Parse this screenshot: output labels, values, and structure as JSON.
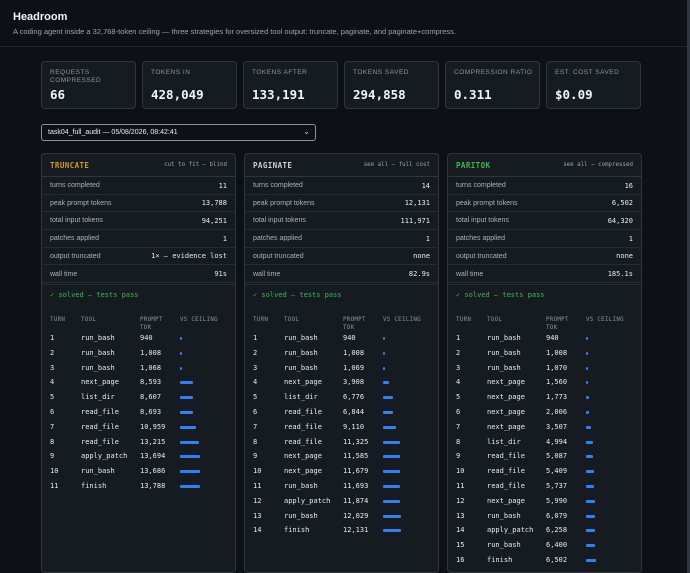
{
  "app": {
    "title": "Headroom",
    "subtitle": "A coding agent inside a 32,768-token ceiling — three strategies for oversized tool output: truncate, paginate, and paginate+compress."
  },
  "stats": [
    {
      "label": "REQUESTS COMPRESSED",
      "value": "66"
    },
    {
      "label": "TOKENS IN",
      "value": "428,049"
    },
    {
      "label": "TOKENS AFTER",
      "value": "133,191"
    },
    {
      "label": "TOKENS SAVED",
      "value": "294,858"
    },
    {
      "label": "COMPRESSION RATIO",
      "value": "0.311"
    },
    {
      "label": "EST. COST SAVED",
      "value": "$0.09"
    }
  ],
  "run_select": {
    "value": "task04_full_audit — 05/08/2026, 08:42:41"
  },
  "ceiling_tokens": 32768,
  "table_headers": {
    "turn": "TURN",
    "tool": "TOOL",
    "prompt_tok": "PROMPT TOK",
    "vs_ceiling": "VS CEILING"
  },
  "panels": [
    {
      "name": "TRUNCATE",
      "tag": "cut to fit — blind",
      "color": "#d29922",
      "metrics": [
        {
          "label": "turns completed",
          "value": "11"
        },
        {
          "label": "peak prompt tokens",
          "value": "13,788"
        },
        {
          "label": "total input tokens",
          "value": "94,251"
        },
        {
          "label": "patches applied",
          "value": "1"
        },
        {
          "label": "output truncated",
          "value": "1× — evidence lost"
        },
        {
          "label": "wall time",
          "value": "91s"
        }
      ],
      "status": "✓ solved — tests pass",
      "rows": [
        {
          "turn": "1",
          "tool": "run_bash",
          "tok": "940",
          "n": 940
        },
        {
          "turn": "2",
          "tool": "run_bash",
          "tok": "1,008",
          "n": 1008
        },
        {
          "turn": "3",
          "tool": "run_bash",
          "tok": "1,068",
          "n": 1068
        },
        {
          "turn": "4",
          "tool": "next_page",
          "tok": "8,593",
          "n": 8593
        },
        {
          "turn": "5",
          "tool": "list_dir",
          "tok": "8,607",
          "n": 8607
        },
        {
          "turn": "6",
          "tool": "read_file",
          "tok": "8,693",
          "n": 8693
        },
        {
          "turn": "7",
          "tool": "read_file",
          "tok": "10,959",
          "n": 10959
        },
        {
          "turn": "8",
          "tool": "read_file",
          "tok": "13,215",
          "n": 13215
        },
        {
          "turn": "9",
          "tool": "apply_patch",
          "tok": "13,694",
          "n": 13694
        },
        {
          "turn": "10",
          "tool": "run_bash",
          "tok": "13,686",
          "n": 13686
        },
        {
          "turn": "11",
          "tool": "finish",
          "tok": "13,788",
          "n": 13788
        }
      ]
    },
    {
      "name": "PAGINATE",
      "tag": "see all — full cost",
      "color": "#c9d1d9",
      "metrics": [
        {
          "label": "turns completed",
          "value": "14"
        },
        {
          "label": "peak prompt tokens",
          "value": "12,131"
        },
        {
          "label": "total input tokens",
          "value": "111,971"
        },
        {
          "label": "patches applied",
          "value": "1"
        },
        {
          "label": "output truncated",
          "value": "none"
        },
        {
          "label": "wall time",
          "value": "82.9s"
        }
      ],
      "status": "✓ solved — tests pass",
      "rows": [
        {
          "turn": "1",
          "tool": "run_bash",
          "tok": "940",
          "n": 940
        },
        {
          "turn": "2",
          "tool": "run_bash",
          "tok": "1,008",
          "n": 1008
        },
        {
          "turn": "3",
          "tool": "run_bash",
          "tok": "1,069",
          "n": 1069
        },
        {
          "turn": "4",
          "tool": "next_page",
          "tok": "3,908",
          "n": 3908
        },
        {
          "turn": "5",
          "tool": "list_dir",
          "tok": "6,776",
          "n": 6776
        },
        {
          "turn": "6",
          "tool": "read_file",
          "tok": "6,844",
          "n": 6844
        },
        {
          "turn": "7",
          "tool": "read_file",
          "tok": "9,110",
          "n": 9110
        },
        {
          "turn": "8",
          "tool": "read_file",
          "tok": "11,325",
          "n": 11325
        },
        {
          "turn": "9",
          "tool": "next_page",
          "tok": "11,585",
          "n": 11585
        },
        {
          "turn": "10",
          "tool": "next_page",
          "tok": "11,679",
          "n": 11679
        },
        {
          "turn": "11",
          "tool": "run_bash",
          "tok": "11,693",
          "n": 11693
        },
        {
          "turn": "12",
          "tool": "apply_patch",
          "tok": "11,874",
          "n": 11874
        },
        {
          "turn": "13",
          "tool": "run_bash",
          "tok": "12,029",
          "n": 12029
        },
        {
          "turn": "14",
          "tool": "finish",
          "tok": "12,131",
          "n": 12131
        }
      ]
    },
    {
      "name": "PARITOK",
      "tag": "see all — compressed",
      "color": "#3fb950",
      "metrics": [
        {
          "label": "turns completed",
          "value": "16"
        },
        {
          "label": "peak prompt tokens",
          "value": "6,502"
        },
        {
          "label": "total input tokens",
          "value": "64,320"
        },
        {
          "label": "patches applied",
          "value": "1"
        },
        {
          "label": "output truncated",
          "value": "none"
        },
        {
          "label": "wall time",
          "value": "185.1s"
        }
      ],
      "status": "✓ solved — tests pass",
      "rows": [
        {
          "turn": "1",
          "tool": "run_bash",
          "tok": "940",
          "n": 940
        },
        {
          "turn": "2",
          "tool": "run_bash",
          "tok": "1,008",
          "n": 1008
        },
        {
          "turn": "3",
          "tool": "run_bash",
          "tok": "1,070",
          "n": 1070
        },
        {
          "turn": "4",
          "tool": "next_page",
          "tok": "1,560",
          "n": 1560
        },
        {
          "turn": "5",
          "tool": "next_page",
          "tok": "1,773",
          "n": 1773
        },
        {
          "turn": "6",
          "tool": "next_page",
          "tok": "2,006",
          "n": 2006
        },
        {
          "turn": "7",
          "tool": "next_page",
          "tok": "3,507",
          "n": 3507
        },
        {
          "turn": "8",
          "tool": "list_dir",
          "tok": "4,994",
          "n": 4994
        },
        {
          "turn": "9",
          "tool": "read_file",
          "tok": "5,087",
          "n": 5087
        },
        {
          "turn": "10",
          "tool": "read_file",
          "tok": "5,409",
          "n": 5409
        },
        {
          "turn": "11",
          "tool": "read_file",
          "tok": "5,737",
          "n": 5737
        },
        {
          "turn": "12",
          "tool": "next_page",
          "tok": "5,990",
          "n": 5990
        },
        {
          "turn": "13",
          "tool": "run_bash",
          "tok": "6,079",
          "n": 6079
        },
        {
          "turn": "14",
          "tool": "apply_patch",
          "tok": "6,258",
          "n": 6258
        },
        {
          "turn": "15",
          "tool": "run_bash",
          "tok": "6,400",
          "n": 6400
        },
        {
          "turn": "16",
          "tool": "finish",
          "tok": "6,502",
          "n": 6502
        }
      ]
    }
  ]
}
